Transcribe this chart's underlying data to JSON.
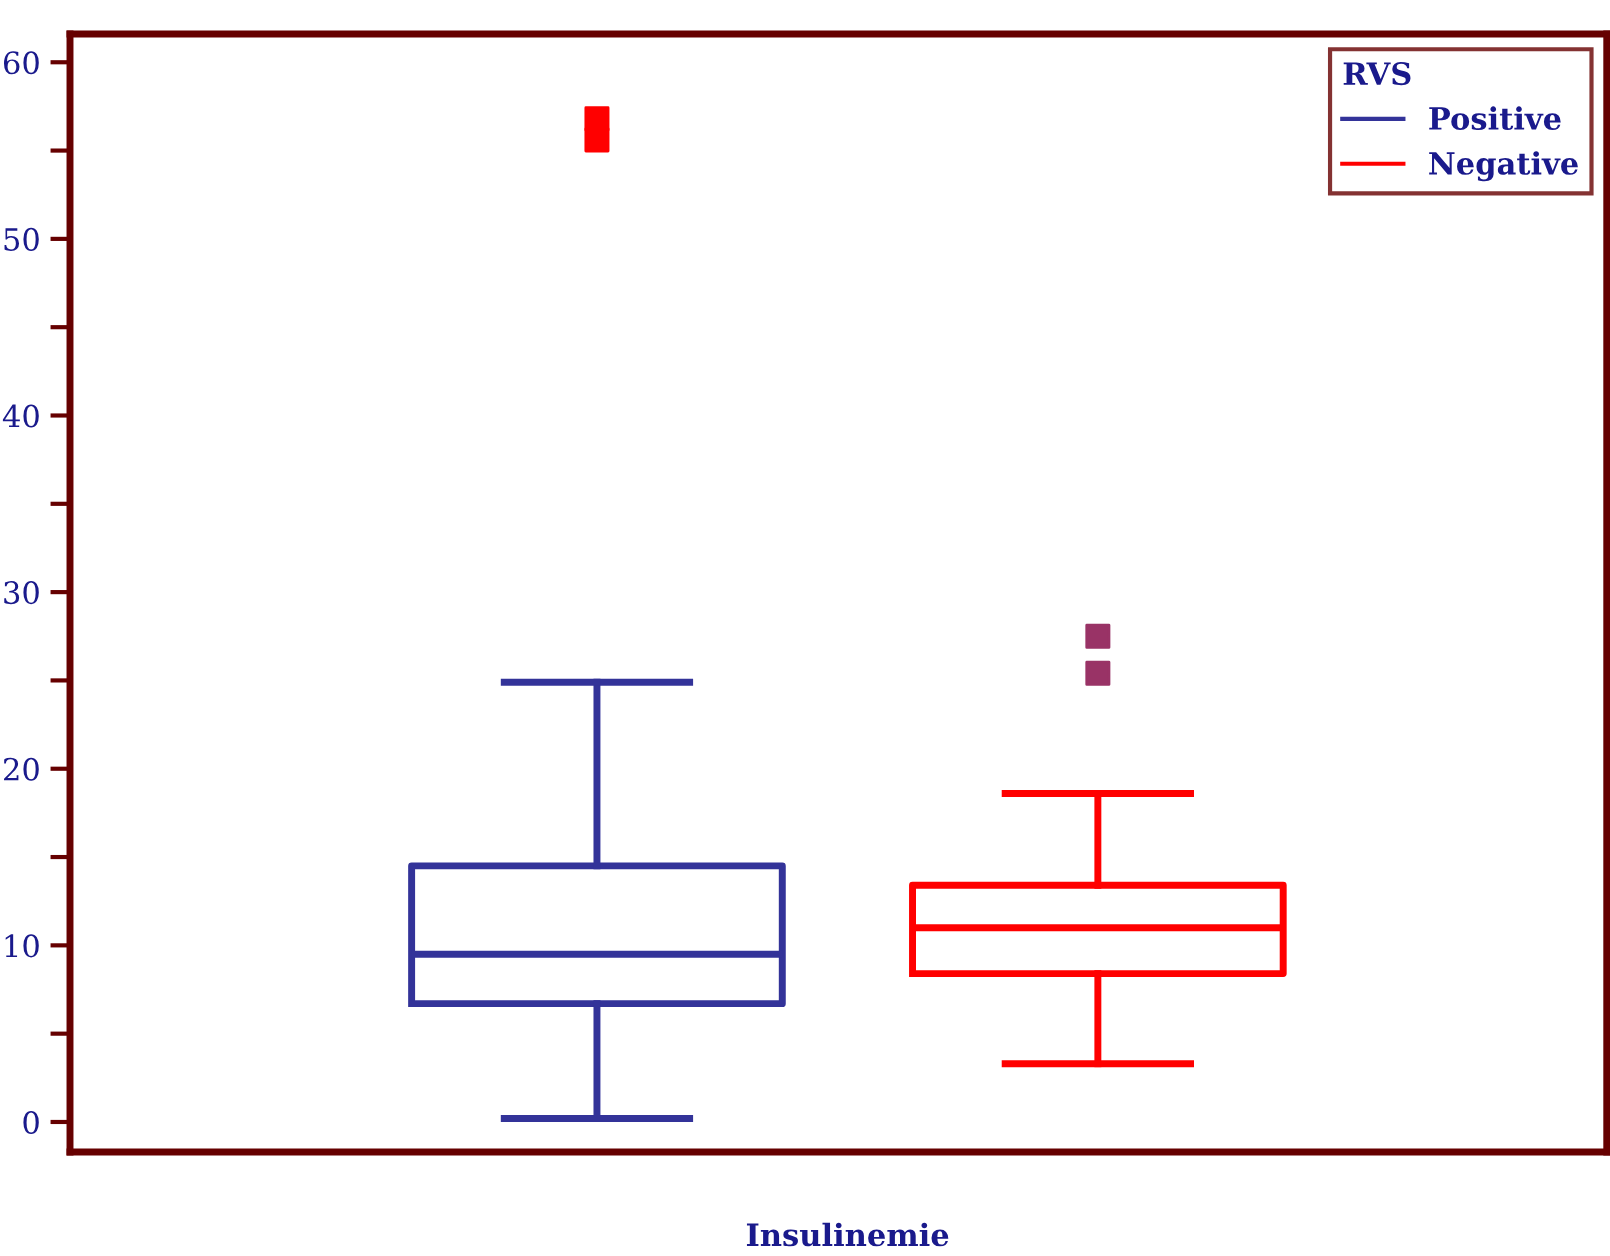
{
  "chart_data": {
    "type": "box",
    "xlabel": "Insulinemie",
    "legend_title": "RVS",
    "categories": [
      null
    ],
    "series": [
      {
        "name": "Positive",
        "color": "#333399",
        "boxes": [
          {
            "low": 0.2,
            "q1": 6.7,
            "median": 9.5,
            "q3": 14.5,
            "high": 24.9
          }
        ]
      },
      {
        "type": "scatter",
        "color": "#ff0000",
        "x": [
          null,
          null
        ],
        "values": [
          56.8,
          55.6
        ]
      },
      {
        "name": "Negative",
        "color": "#ff0000",
        "boxes": [
          {
            "low": 3.3,
            "q1": 8.4,
            "median": 11.0,
            "q3": 13.4,
            "high": 18.6
          }
        ]
      },
      {
        "type": "scatter",
        "color": "#993366",
        "x": [
          null,
          null
        ],
        "values": [
          27.5,
          25.4
        ]
      }
    ],
    "ylim": [
      -1.7,
      61.6
    ],
    "yticks": [
      0,
      {
        "value": 5,
        "label": null
      },
      10,
      {
        "value": 15,
        "label": null
      },
      20,
      {
        "value": 25,
        "label": null
      },
      30,
      {
        "value": 35,
        "label": null
      },
      40,
      {
        "value": 45,
        "label": null
      },
      50,
      {
        "value": 55,
        "label": null
      },
      60
    ],
    "tick_labels": "y",
    "grid": false,
    "legend": "top right",
    "marker": "square"
  }
}
